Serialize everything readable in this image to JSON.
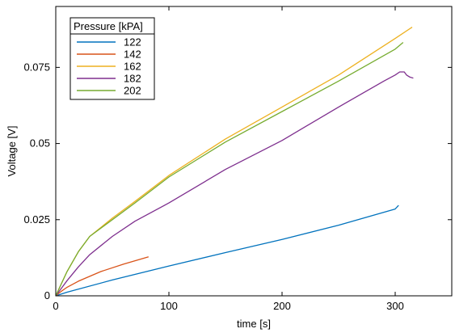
{
  "chart_data": {
    "type": "line",
    "title": "",
    "xlabel": "time [s]",
    "ylabel": "Voltage [V]",
    "xlim": [
      0,
      350
    ],
    "ylim": [
      0,
      0.095
    ],
    "x_ticks": [
      0,
      100,
      200,
      300
    ],
    "x_tick_labels": [
      "0",
      "100",
      "200",
      "300"
    ],
    "y_ticks": [
      0,
      0.025,
      0.05,
      0.075
    ],
    "y_tick_labels": [
      "0",
      "0.025",
      "0.05",
      "0.075"
    ],
    "grid": false,
    "legend": {
      "title": "Pressure [kPA]",
      "placement": "top-left"
    },
    "series": [
      {
        "name": "122",
        "color": "#0072BD",
        "points": [
          [
            0,
            0
          ],
          [
            10,
            0.0012
          ],
          [
            50,
            0.0052
          ],
          [
            100,
            0.0098
          ],
          [
            150,
            0.0142
          ],
          [
            200,
            0.0185
          ],
          [
            250,
            0.0232
          ],
          [
            300,
            0.0285
          ],
          [
            303,
            0.0297
          ]
        ]
      },
      {
        "name": "142",
        "color": "#D95319",
        "points": [
          [
            0,
            0
          ],
          [
            5,
            0.0015
          ],
          [
            10,
            0.0028
          ],
          [
            20,
            0.0048
          ],
          [
            40,
            0.008
          ],
          [
            60,
            0.0104
          ],
          [
            82,
            0.0128
          ]
        ]
      },
      {
        "name": "162",
        "color": "#EDB120",
        "points": [
          [
            0,
            0
          ],
          [
            5,
            0.004
          ],
          [
            10,
            0.008
          ],
          [
            20,
            0.0145
          ],
          [
            30,
            0.0195
          ],
          [
            50,
            0.0255
          ],
          [
            70,
            0.031
          ],
          [
            100,
            0.0395
          ],
          [
            150,
            0.0515
          ],
          [
            200,
            0.062
          ],
          [
            250,
            0.0725
          ],
          [
            300,
            0.0845
          ],
          [
            315,
            0.0882
          ]
        ]
      },
      {
        "name": "182",
        "color": "#7E2F8E",
        "points": [
          [
            0,
            0
          ],
          [
            5,
            0.0025
          ],
          [
            10,
            0.005
          ],
          [
            20,
            0.0095
          ],
          [
            30,
            0.0135
          ],
          [
            50,
            0.0195
          ],
          [
            70,
            0.0245
          ],
          [
            100,
            0.0305
          ],
          [
            150,
            0.0415
          ],
          [
            200,
            0.051
          ],
          [
            250,
            0.062
          ],
          [
            290,
            0.0705
          ],
          [
            300,
            0.0725
          ],
          [
            304,
            0.0735
          ],
          [
            308,
            0.0735
          ],
          [
            310,
            0.0725
          ],
          [
            313,
            0.0718
          ],
          [
            316,
            0.0715
          ]
        ]
      },
      {
        "name": "202",
        "color": "#77AC30",
        "points": [
          [
            0,
            0
          ],
          [
            5,
            0.004
          ],
          [
            10,
            0.008
          ],
          [
            20,
            0.0145
          ],
          [
            30,
            0.0195
          ],
          [
            50,
            0.025
          ],
          [
            70,
            0.0305
          ],
          [
            100,
            0.039
          ],
          [
            150,
            0.0505
          ],
          [
            200,
            0.0605
          ],
          [
            250,
            0.0705
          ],
          [
            300,
            0.081
          ],
          [
            307,
            0.0832
          ]
        ]
      }
    ]
  }
}
